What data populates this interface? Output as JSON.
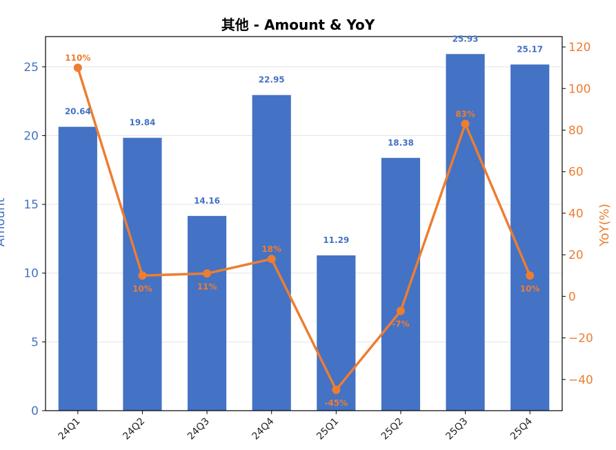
{
  "chart_data": {
    "type": "bar",
    "title": "其他 - Amount & YoY",
    "categories": [
      "24Q1",
      "24Q2",
      "24Q3",
      "24Q4",
      "25Q1",
      "25Q2",
      "25Q3",
      "25Q4"
    ],
    "series": [
      {
        "name": "Amount",
        "type": "bar",
        "axis": "left",
        "color": "#4472c4",
        "values": [
          20.64,
          19.84,
          14.16,
          22.95,
          11.29,
          18.38,
          25.93,
          25.17
        ],
        "labels": [
          "20.64",
          "19.84",
          "14.16",
          "22.95",
          "11.29",
          "18.38",
          "25.93",
          "25.17"
        ]
      },
      {
        "name": "YoY(%)",
        "type": "line",
        "axis": "right",
        "color": "#ed7d31",
        "values": [
          110,
          10,
          11,
          18,
          -45,
          -7,
          83,
          10
        ],
        "labels": [
          "110%",
          "10%",
          "11%",
          "18%",
          "-45%",
          "-7%",
          "83%",
          "10%"
        ]
      }
    ],
    "ylabel_left": "Amount",
    "ylabel_right": "YoY(%)",
    "ylim_left": [
      0,
      27.2
    ],
    "ylim_right": [
      -55,
      125
    ],
    "yticks_left": [
      0,
      5,
      10,
      15,
      20,
      25
    ],
    "yticks_right": [
      -40,
      -20,
      0,
      20,
      40,
      60,
      80,
      100,
      120
    ],
    "yticks_right_labels": [
      "−40",
      "−20",
      "0",
      "20",
      "40",
      "60",
      "80",
      "100",
      "120"
    ],
    "grid": true,
    "legend": "none"
  }
}
